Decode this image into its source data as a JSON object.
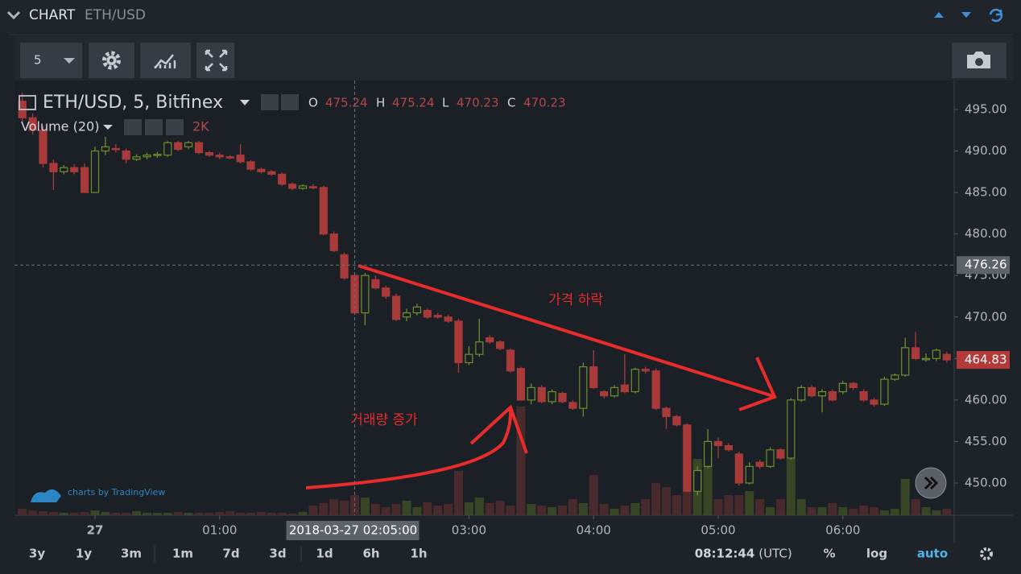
{
  "header": {
    "title": "CHART",
    "symbol": "ETH/USD"
  },
  "toolbar": {
    "interval": "5"
  },
  "legend": {
    "symbol": "ETH/USD, 5, Bitfinex",
    "o_label": "O",
    "o": "475.24",
    "h_label": "H",
    "h": "475.24",
    "l_label": "L",
    "l": "470.23",
    "c_label": "C",
    "c": "470.23"
  },
  "volume_legend": {
    "name": "Volume (20)",
    "value": "2K"
  },
  "watermark": "charts by TradingView",
  "annotations": [
    "가격 하락",
    "거래량 증가"
  ],
  "time_buttons": [
    "3y",
    "1y",
    "3m",
    "1m",
    "7d",
    "3d",
    "1d",
    "6h",
    "1h"
  ],
  "status": {
    "clock": "08:12:44",
    "tz": "(UTC)",
    "percent": "%",
    "log": "log",
    "auto": "auto"
  },
  "chart_data": {
    "type": "candlestick",
    "up_color": "#6f8f2b",
    "down_color": "#a83a3a",
    "x": [
      "23:25",
      "23:30",
      "23:35",
      "23:40",
      "23:45",
      "23:50",
      "23:55",
      "00:00",
      "00:05",
      "00:10",
      "00:15",
      "00:20",
      "00:25",
      "00:30",
      "00:35",
      "00:40",
      "00:45",
      "00:50",
      "00:55",
      "01:00",
      "01:05",
      "01:10",
      "01:15",
      "01:20",
      "01:25",
      "01:30",
      "01:35",
      "01:40",
      "01:45",
      "01:50",
      "01:55",
      "02:00",
      "02:05",
      "02:10",
      "02:15",
      "02:20",
      "02:25",
      "02:30",
      "02:35",
      "02:40",
      "02:45",
      "02:50",
      "02:55",
      "03:00",
      "03:05",
      "03:10",
      "03:15",
      "03:20",
      "03:25",
      "03:30",
      "03:35",
      "03:40",
      "03:45",
      "03:50",
      "03:55",
      "04:00",
      "04:05",
      "04:10",
      "04:15",
      "04:20",
      "04:25",
      "04:30",
      "04:35",
      "04:40",
      "04:45",
      "04:50",
      "04:55",
      "05:00",
      "05:05",
      "05:10",
      "05:15",
      "05:20",
      "05:25",
      "05:30",
      "05:35",
      "05:40",
      "05:45",
      "05:50",
      "05:55",
      "06:00",
      "06:05",
      "06:10",
      "06:15",
      "06:20",
      "06:25",
      "06:30",
      "06:35",
      "06:40",
      "06:45",
      "06:50"
    ],
    "open": [
      496,
      494,
      492.5,
      488.5,
      487.5,
      488,
      488,
      485,
      490,
      490.3,
      490,
      489,
      489.3,
      489.5,
      489.5,
      491,
      490.5,
      491,
      489.8,
      489.5,
      489.3,
      489.5,
      488.7,
      487.8,
      487.5,
      487.2,
      486,
      485.5,
      485.7,
      485.6,
      480,
      477.5,
      475,
      470.5,
      474.5,
      473.5,
      472.5,
      470,
      470.5,
      470.8,
      470.2,
      470,
      469.5,
      464.5,
      465.5,
      467.5,
      467,
      466,
      463.8,
      460,
      461.5,
      459.8,
      460.8,
      459.7,
      459,
      464,
      461,
      460.5,
      461.8,
      461,
      463.7,
      463.5,
      459,
      458,
      457,
      449,
      452,
      455,
      454.5,
      453.5,
      450,
      452.5,
      452,
      454,
      453,
      460,
      461.5,
      460.5,
      461,
      461,
      462,
      461,
      460,
      459.5,
      462.5,
      463,
      466.3,
      465,
      465,
      465.5
    ],
    "high": [
      497,
      494.5,
      493,
      489,
      488.3,
      488.4,
      488.5,
      490.5,
      491.7,
      490.8,
      490.3,
      489.6,
      489.8,
      489.9,
      491.2,
      491.2,
      491.2,
      491.2,
      490,
      489.8,
      489.5,
      490.8,
      488.9,
      488,
      487.7,
      487.4,
      486.2,
      486,
      486,
      485.8,
      480.3,
      477.8,
      475.3,
      475.3,
      475,
      473.8,
      472.8,
      471,
      471.6,
      471,
      470.5,
      470.3,
      469.8,
      466.5,
      469.8,
      467.8,
      467.2,
      466.2,
      464,
      462,
      461.8,
      461.3,
      461,
      460,
      464.5,
      466,
      461.2,
      461.8,
      465.5,
      463.9,
      464,
      463.8,
      459.2,
      458.2,
      457.2,
      452,
      456.5,
      455.5,
      454.8,
      453.8,
      452.5,
      452.8,
      454.3,
      454.2,
      460.2,
      461.8,
      461.8,
      461.3,
      461.3,
      462.3,
      462.2,
      461.3,
      460.3,
      462.8,
      463.2,
      467.5,
      468.2,
      465.6,
      466.2,
      465.8
    ],
    "low": [
      493.5,
      492,
      488,
      485.3,
      487.2,
      487.2,
      485,
      485,
      489.5,
      489.8,
      488.5,
      488.8,
      489,
      489.2,
      489.3,
      490,
      490.2,
      489.6,
      489.3,
      489,
      489,
      488.5,
      487.6,
      487.3,
      487,
      485.8,
      485.3,
      485.3,
      485.4,
      479.8,
      477.8,
      474.5,
      470.3,
      469,
      473.3,
      472.2,
      469.5,
      469.5,
      470.2,
      469.8,
      469.8,
      469.3,
      463.3,
      464.2,
      465.2,
      466.8,
      466,
      463.3,
      460,
      459.5,
      459.6,
      459.5,
      459.6,
      458.8,
      458,
      461.3,
      460.2,
      460.3,
      460.8,
      460.8,
      463.2,
      458.8,
      456.5,
      456.8,
      449,
      448.5,
      451.8,
      453,
      453.8,
      449.7,
      449.8,
      451.7,
      451.8,
      452.8,
      452.8,
      459.8,
      460.3,
      458.5,
      459.8,
      460.7,
      461.2,
      459.8,
      459.2,
      459.3,
      462.3,
      462.8,
      464.8,
      464.6,
      464.7,
      464.5
    ],
    "close": [
      494,
      492.5,
      488.5,
      487.5,
      488,
      487.5,
      485,
      490,
      490.5,
      490.2,
      489,
      489.3,
      489.5,
      489.6,
      491,
      490.2,
      491,
      489.8,
      489.5,
      489.3,
      489.2,
      488.7,
      487.8,
      487.5,
      487.2,
      486,
      485.5,
      485.8,
      485.6,
      480,
      478,
      474.7,
      470.5,
      475,
      473.5,
      472.5,
      469.7,
      470.5,
      471.2,
      470,
      470,
      469.5,
      464.5,
      465.5,
      467,
      467,
      466.2,
      463.5,
      460,
      461.5,
      459.8,
      461,
      459.8,
      459,
      464,
      461.5,
      460.5,
      461.5,
      461,
      463.7,
      463.5,
      459,
      458,
      457,
      449,
      451.5,
      455,
      454.5,
      454,
      450,
      452,
      452,
      454,
      453,
      460,
      461.5,
      460.5,
      461,
      460,
      462,
      461.5,
      460,
      459.5,
      462.5,
      463,
      466.3,
      465,
      465,
      466,
      464.83
    ],
    "volume": [
      8,
      6,
      5,
      4,
      3,
      3,
      4,
      6,
      4,
      3,
      3,
      5,
      3,
      3,
      3,
      4,
      3,
      3,
      3,
      4,
      5,
      3,
      3,
      4,
      3,
      3,
      2,
      4,
      12,
      15,
      20,
      18,
      25,
      22,
      14,
      10,
      14,
      18,
      10,
      16,
      12,
      14,
      55,
      16,
      22,
      15,
      18,
      12,
      135,
      14,
      12,
      10,
      12,
      20,
      15,
      50,
      14,
      8,
      12,
      15,
      20,
      40,
      35,
      25,
      110,
      70,
      65,
      20,
      25,
      25,
      30,
      20,
      10,
      20,
      70,
      20,
      10,
      10,
      15,
      10,
      8,
      12,
      10,
      6,
      8,
      45,
      20,
      10,
      6,
      8
    ],
    "ylim": [
      446.12,
      498.49
    ],
    "yticks": [
      {
        "value": 450,
        "label": "450.00"
      },
      {
        "value": 455,
        "label": "455.00"
      },
      {
        "value": 460,
        "label": "460.00"
      },
      {
        "value": 465,
        "label": "465.00"
      },
      {
        "value": 470,
        "label": "470.00"
      },
      {
        "value": 475,
        "label": "475.00"
      },
      {
        "value": 480,
        "label": "480.00"
      },
      {
        "value": 485,
        "label": "485.00"
      },
      {
        "value": 490,
        "label": "490.00"
      },
      {
        "value": 495,
        "label": "495.00"
      }
    ],
    "xticks": [
      {
        "value": "00:00",
        "label": "27"
      },
      "01:00",
      "03:00",
      "04:00",
      "05:00",
      "06:00"
    ],
    "crosshair": {
      "value": 476.26,
      "label": "476.26"
    },
    "crosshair_time": {
      "value": "02:05",
      "label": "2018-03-27 02:05:00"
    },
    "last": {
      "value": 464.83,
      "label": "464.83"
    },
    "grid": false
  }
}
